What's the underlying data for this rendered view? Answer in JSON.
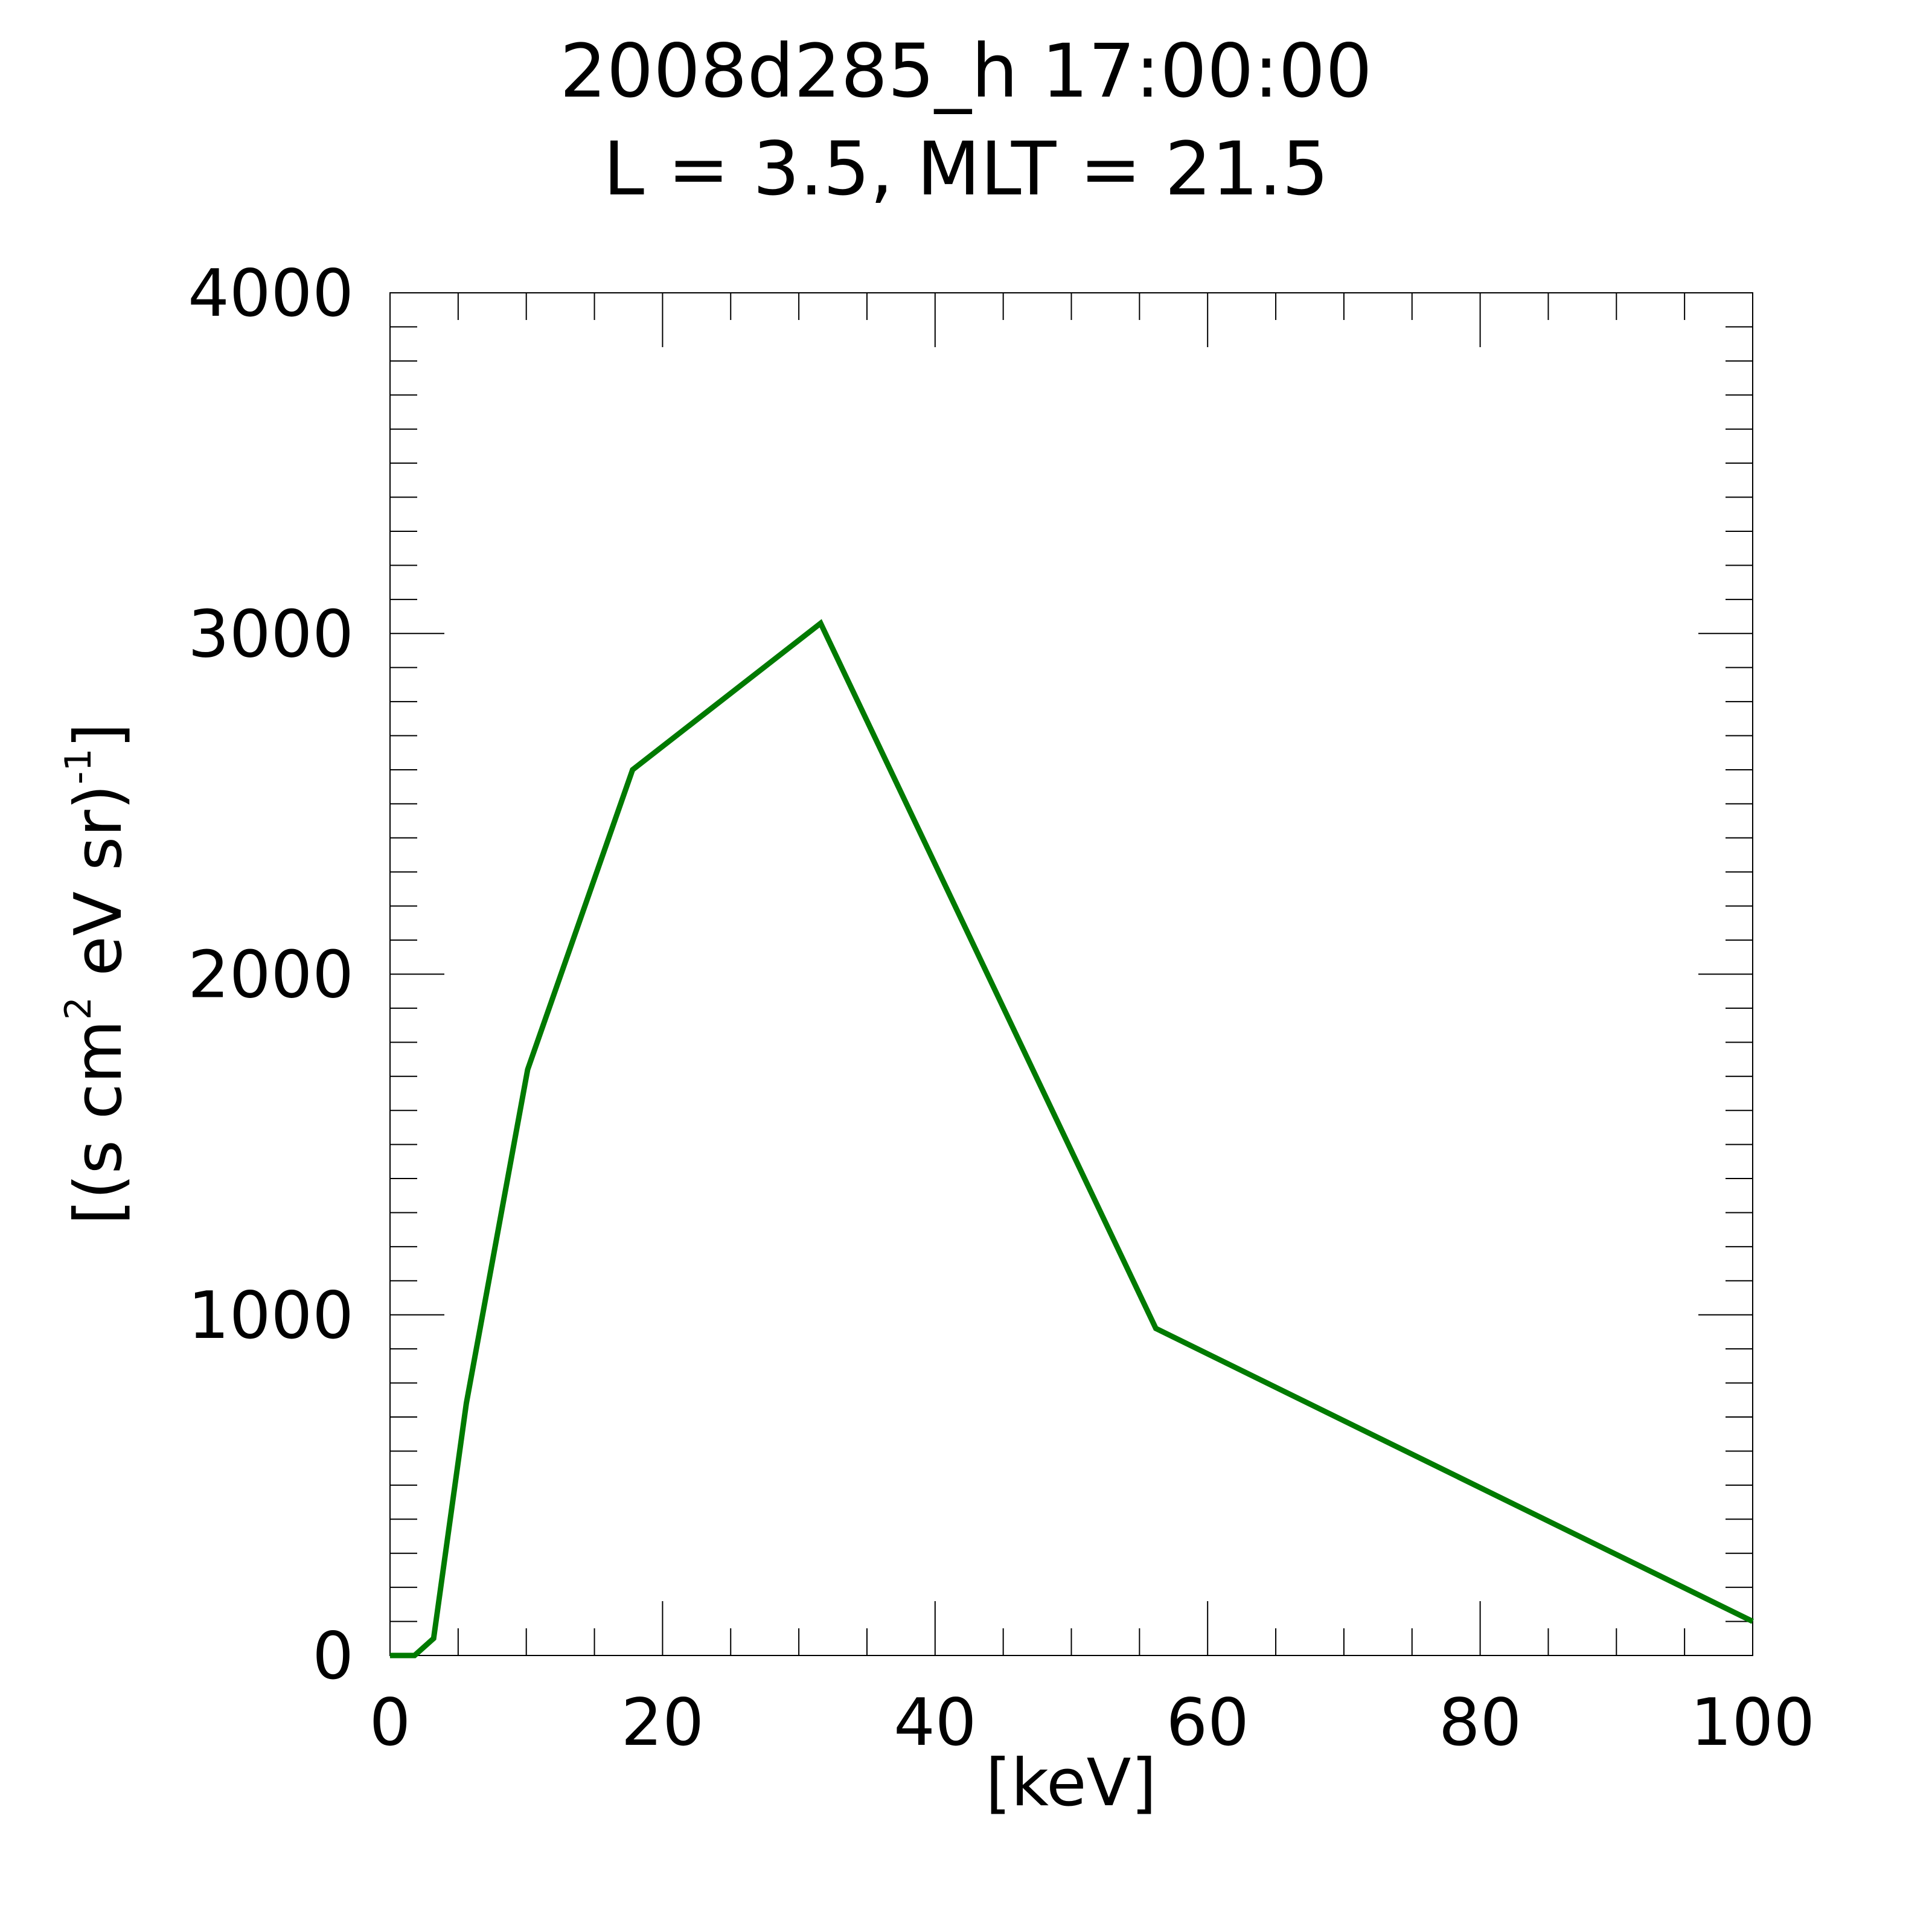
{
  "chart_data": {
    "type": "line",
    "title": "2008d285_h  17:00:00",
    "subtitle": "L = 3.5, MLT = 21.5",
    "xlabel": "[keV]",
    "ylabel": {
      "prefix": "[(s cm",
      "sup1": "2",
      "middle": " eV sr)",
      "sup2": "-1",
      "suffix": "]"
    },
    "xlim": [
      0,
      100
    ],
    "ylim": [
      0,
      4000
    ],
    "x_ticks": [
      0,
      20,
      40,
      60,
      80,
      100
    ],
    "x_tick_labels": [
      "0",
      "20",
      "40",
      "60",
      "80",
      "100"
    ],
    "y_ticks": [
      0,
      1000,
      2000,
      3000,
      4000
    ],
    "y_tick_labels": [
      "0",
      "1000",
      "2000",
      "3000",
      "4000"
    ],
    "x_minor_step": 5,
    "y_minor_step": 100,
    "grid": false,
    "series": [
      {
        "color": "#007a00",
        "x": [
          0,
          1.8,
          3.2,
          5.6,
          10.1,
          17.8,
          31.6,
          56.2,
          100
        ],
        "y": [
          0,
          0,
          50,
          740,
          1720,
          2600,
          3030,
          960,
          100
        ]
      }
    ]
  }
}
